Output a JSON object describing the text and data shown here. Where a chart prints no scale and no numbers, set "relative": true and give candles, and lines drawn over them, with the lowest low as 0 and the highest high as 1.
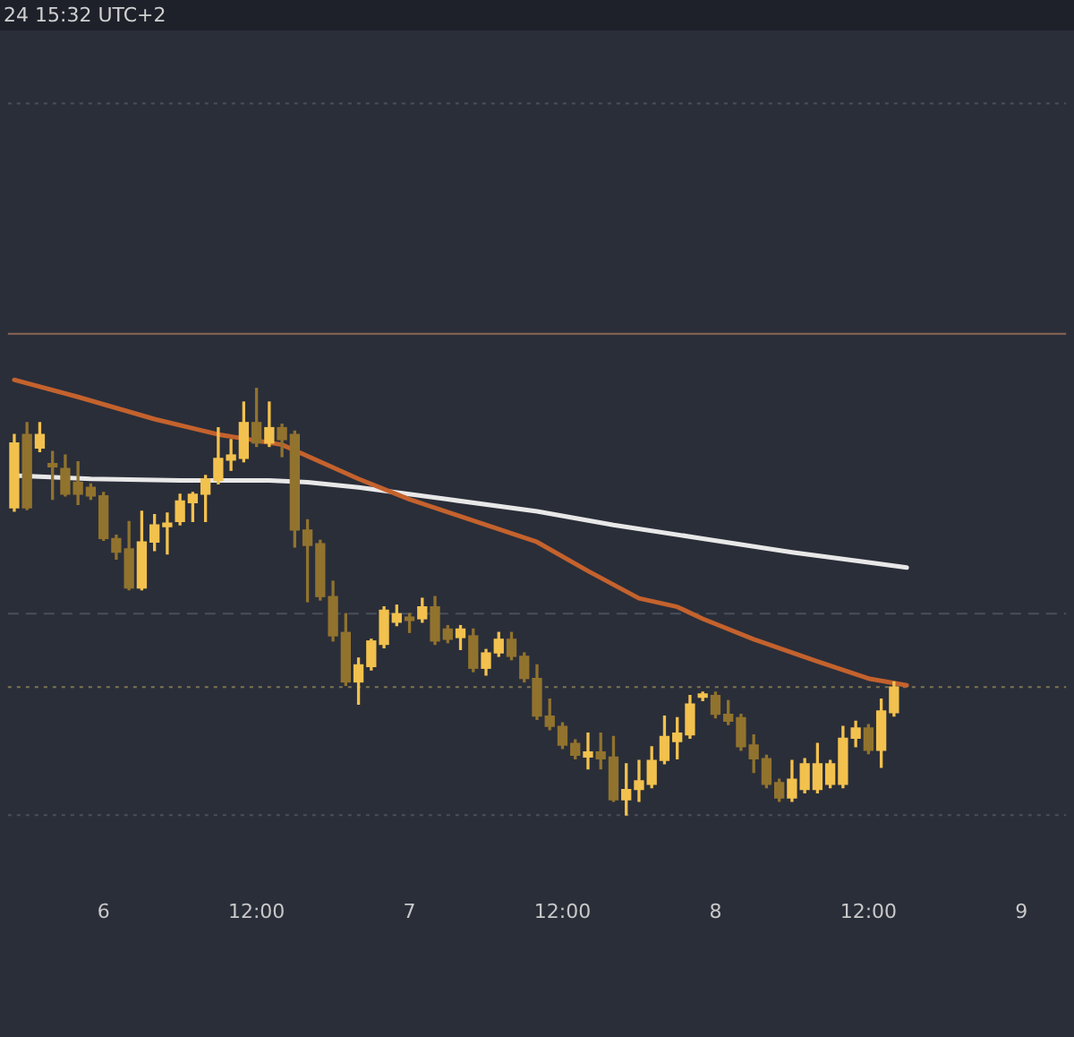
{
  "chart_data": {
    "type": "candlestick",
    "relative": true,
    "colors": [
      "#f2c14e",
      "#91732e",
      "#f2c14e",
      "#91732e",
      "#91732e",
      "#91732e",
      "#91732e",
      "#91732e",
      "#91732e",
      "#91732e",
      "#f2c14e",
      "#f2c14e",
      "#f2c14e",
      "#f2c14e",
      "#f2c14e",
      "#f2c14e",
      "#f2c14e",
      "#f2c14e",
      "#f2c14e",
      "#91732e",
      "#f2c14e",
      "#91732e",
      "#91732e",
      "#91732e",
      "#91732e",
      "#91732e",
      "#91732e",
      "#f2c14e",
      "#f2c14e",
      "#f2c14e",
      "#f2c14e",
      "#91732e",
      "#f2c14e",
      "#91732e",
      "#91732e",
      "#f2c14e",
      "#91732e",
      "#f2c14e",
      "#f2c14e",
      "#91732e",
      "#91732e",
      "#91732e",
      "#91732e",
      "#91732e",
      "#91732e",
      "#f2c14e",
      "#91732e",
      "#91732e",
      "#f2c14e",
      "#f2c14e",
      "#f2c14e",
      "#f2c14e",
      "#f2c14e",
      "#f2c14e",
      "#f2c14e",
      "#91732e",
      "#91732e",
      "#91732e",
      "#91732e",
      "#91732e",
      "#91732e",
      "#f2c14e",
      "#f2c14e",
      "#f2c14e",
      "#f2c14e",
      "#f2c14e",
      "#f2c14e",
      "#91732e",
      "#f2c14e",
      "#f2c14e",
      null,
      null,
      null,
      null,
      null,
      null,
      null,
      null,
      null,
      null,
      null,
      null,
      null
    ],
    "categories": [
      null,
      null,
      null,
      null,
      null,
      null,
      null,
      "6",
      null,
      null,
      null,
      null,
      null,
      null,
      null,
      null,
      null,
      null,
      null,
      "12:00",
      null,
      null,
      null,
      null,
      null,
      null,
      null,
      null,
      null,
      null,
      null,
      "7",
      null,
      null,
      null,
      null,
      null,
      null,
      null,
      null,
      null,
      null,
      null,
      "12:00",
      null,
      null,
      null,
      null,
      null,
      null,
      null,
      null,
      null,
      null,
      null,
      "8",
      null,
      null,
      null,
      null,
      null,
      null,
      null,
      null,
      null,
      null,
      null,
      "12:00",
      null,
      null,
      null,
      null,
      null,
      null,
      null,
      null,
      null,
      null,
      null,
      "9",
      null,
      null,
      null
    ],
    "ohlc": [
      [
        0.72,
        0.892,
        0.712,
        0.872
      ],
      [
        0.892,
        0.92,
        0.716,
        0.72
      ],
      [
        0.86,
        0.92,
        0.852,
        0.892
      ],
      [
        0.824,
        0.852,
        0.74,
        0.816
      ],
      [
        0.812,
        0.844,
        0.748,
        0.752
      ],
      [
        0.78,
        0.828,
        0.728,
        0.752
      ],
      [
        0.768,
        0.776,
        0.74,
        0.748
      ],
      [
        0.748,
        0.756,
        0.644,
        0.648
      ],
      [
        0.648,
        0.656,
        0.6,
        0.616
      ],
      [
        0.624,
        0.688,
        0.528,
        0.532
      ],
      [
        0.532,
        0.712,
        0.528,
        0.64
      ],
      [
        0.64,
        0.704,
        0.62,
        0.68
      ],
      [
        0.676,
        0.708,
        0.612,
        0.684
      ],
      [
        0.688,
        0.752,
        0.68,
        0.736
      ],
      [
        0.732,
        0.756,
        0.688,
        0.752
      ],
      [
        0.752,
        0.796,
        0.688,
        0.788
      ],
      [
        0.784,
        0.908,
        0.776,
        0.836
      ],
      [
        0.832,
        0.88,
        0.808,
        0.844
      ],
      [
        0.836,
        0.968,
        0.828,
        0.92
      ],
      [
        0.92,
        1.0,
        0.864,
        0.872
      ],
      [
        0.872,
        0.968,
        0.864,
        0.908
      ],
      [
        0.908,
        0.916,
        0.84,
        0.88
      ],
      [
        0.892,
        0.9,
        0.628,
        0.668
      ],
      [
        0.668,
        0.692,
        0.5,
        0.632
      ],
      [
        0.636,
        0.644,
        0.504,
        0.512
      ],
      [
        0.512,
        0.548,
        0.408,
        0.42
      ],
      [
        0.428,
        0.472,
        0.304,
        0.312
      ],
      [
        0.312,
        0.368,
        0.26,
        0.352
      ],
      [
        0.348,
        0.412,
        0.34,
        0.408
      ],
      [
        0.4,
        0.488,
        0.392,
        0.48
      ],
      [
        0.452,
        0.492,
        0.444,
        0.472
      ],
      [
        0.464,
        0.472,
        0.428,
        0.456
      ],
      [
        0.46,
        0.508,
        0.452,
        0.488
      ],
      [
        0.488,
        0.512,
        0.4,
        0.408
      ],
      [
        0.436,
        0.444,
        0.404,
        0.412
      ],
      [
        0.416,
        0.444,
        0.388,
        0.436
      ],
      [
        0.42,
        0.436,
        0.336,
        0.344
      ],
      [
        0.344,
        0.388,
        0.328,
        0.38
      ],
      [
        0.38,
        0.428,
        0.372,
        0.412
      ],
      [
        0.412,
        0.428,
        0.364,
        0.372
      ],
      [
        0.372,
        0.38,
        0.312,
        0.32
      ],
      [
        0.32,
        0.352,
        0.224,
        0.232
      ],
      [
        0.232,
        0.272,
        0.2,
        0.208
      ],
      [
        0.208,
        0.216,
        0.156,
        0.164
      ],
      [
        0.168,
        0.176,
        0.132,
        0.14
      ],
      [
        0.136,
        0.192,
        0.108,
        0.148
      ],
      [
        0.148,
        0.192,
        0.108,
        0.132
      ],
      [
        0.136,
        0.184,
        0.032,
        0.036
      ],
      [
        0.036,
        0.12,
        0,
        0.06
      ],
      [
        0.06,
        0.128,
        0.032,
        0.08
      ],
      [
        0.072,
        0.16,
        0.064,
        0.128
      ],
      [
        0.128,
        0.232,
        0.12,
        0.184
      ],
      [
        0.172,
        0.228,
        0.132,
        0.192
      ],
      [
        0.188,
        0.28,
        0.18,
        0.26
      ],
      [
        0.276,
        0.288,
        0.268,
        0.284
      ],
      [
        0.28,
        0.288,
        0.228,
        0.236
      ],
      [
        0.236,
        0.268,
        0.212,
        0.22
      ],
      [
        0.228,
        0.236,
        0.152,
        0.16
      ],
      [
        0.164,
        0.188,
        0.1,
        0.132
      ],
      [
        0.132,
        0.14,
        0.064,
        0.072
      ],
      [
        0.076,
        0.084,
        0.032,
        0.04
      ],
      [
        0.04,
        0.128,
        0.032,
        0.084
      ],
      [
        0.06,
        0.132,
        0.052,
        0.12
      ],
      [
        0.06,
        0.168,
        0.052,
        0.12
      ],
      [
        0.072,
        0.128,
        0.064,
        0.12
      ],
      [
        0.072,
        0.208,
        0.064,
        0.18
      ],
      [
        0.18,
        0.22,
        0.16,
        0.204
      ],
      [
        0.204,
        0.212,
        0.144,
        0.152
      ],
      [
        0.152,
        0.272,
        0.112,
        0.244
      ],
      [
        0.24,
        0.312,
        0.232,
        0.3
      ],
      null,
      null,
      null,
      null,
      null,
      null,
      null,
      null,
      null,
      null,
      null,
      null,
      null
    ],
    "series": [
      {
        "type": "line",
        "color": "#c4622d",
        "values": [
          1.02,
          null,
          null,
          null,
          null,
          0.98,
          null,
          null,
          null,
          null,
          null,
          0.928,
          null,
          null,
          null,
          null,
          0.892,
          null,
          null,
          null,
          null,
          0.868,
          null,
          null,
          null,
          null,
          null,
          0.788,
          null,
          null,
          null,
          0.74,
          null,
          null,
          null,
          0.7,
          null,
          null,
          null,
          null,
          null,
          0.64,
          null,
          null,
          null,
          0.572,
          null,
          null,
          null,
          0.508,
          null,
          null,
          0.488,
          null,
          0.46,
          null,
          null,
          null,
          0.412,
          null,
          null,
          null,
          null,
          0.36,
          null,
          null,
          null,
          0.32,
          null,
          null,
          0.304,
          null,
          null,
          null,
          null,
          null,
          null,
          null,
          null,
          null,
          null,
          null,
          null
        ]
      },
      {
        "type": "line",
        "color": "#e8e8e8",
        "values": [
          0.796,
          null,
          null,
          null,
          null,
          null,
          0.788,
          null,
          null,
          null,
          null,
          null,
          null,
          0.784,
          null,
          null,
          null,
          null,
          null,
          null,
          0.784,
          null,
          null,
          0.78,
          null,
          null,
          null,
          0.768,
          null,
          null,
          null,
          null,
          null,
          null,
          0.74,
          null,
          null,
          null,
          null,
          null,
          null,
          0.712,
          null,
          null,
          null,
          null,
          null,
          0.68,
          null,
          null,
          null,
          null,
          null,
          null,
          0.648,
          null,
          null,
          null,
          null,
          null,
          null,
          0.616,
          null,
          null,
          null,
          null,
          null,
          0.592,
          null,
          null,
          0.58,
          null,
          null,
          null,
          null,
          null,
          null,
          null,
          null,
          null,
          null,
          null,
          null
        ]
      }
    ],
    "ref_lines": [
      {
        "axis": "y",
        "value": 1.668,
        "color": "#4a4f5c",
        "line_style": "dotted"
      },
      {
        "axis": "y",
        "value": 1.128,
        "color": "#8a6656",
        "line_style": "solid"
      },
      {
        "axis": "y",
        "value": 0.472,
        "color": "#4a4f5c",
        "line_style": "dashed"
      },
      {
        "axis": "y",
        "value": 0.3,
        "color": "#7d7450",
        "line_style": "dotted"
      },
      {
        "axis": "y",
        "value": 0,
        "color": "#4a4f5c",
        "line_style": "dotted"
      }
    ],
    "annotations": [
      "24 15:32 UTC+2"
    ],
    "grid": false,
    "marker": "none"
  }
}
